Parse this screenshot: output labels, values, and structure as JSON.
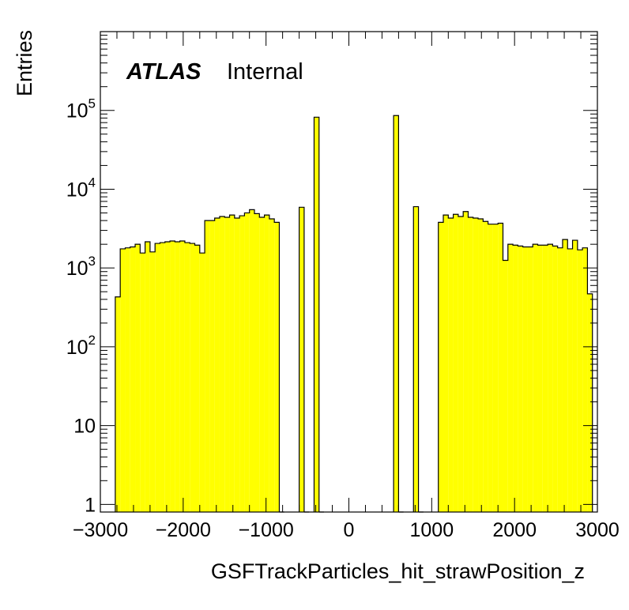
{
  "chart_data": {
    "type": "bar",
    "title": "",
    "xlabel": "GSFTrackParticles_hit_strawPosition_z",
    "ylabel": "Entries",
    "xlim": [
      -3000,
      3000
    ],
    "ylim": [
      0.8,
      1000000
    ],
    "yscale": "log",
    "x_ticks": [
      -3000,
      -2000,
      -1000,
      0,
      1000,
      2000,
      3000
    ],
    "x_tick_labels": [
      "−3000",
      "−2000",
      "−1000",
      "0",
      "1000",
      "2000",
      "3000"
    ],
    "y_ticks": [
      1,
      10,
      100,
      1000,
      10000,
      100000
    ],
    "y_tick_labels": [
      {
        "base": "1",
        "exp": ""
      },
      {
        "base": "10",
        "exp": ""
      },
      {
        "base": "10",
        "exp": "2"
      },
      {
        "base": "10",
        "exp": "3"
      },
      {
        "base": "10",
        "exp": "4"
      },
      {
        "base": "10",
        "exp": "5"
      }
    ],
    "fill_color": "#ffff00",
    "line_color": "#000000",
    "grid": false,
    "legend": "none",
    "label": {
      "experiment": "ATLAS",
      "status": "Internal"
    },
    "bin_width": 60,
    "bin_edges_start": -2820,
    "values": [
      430,
      1750,
      1800,
      1850,
      2000,
      1550,
      2150,
      1600,
      2050,
      2100,
      2150,
      2200,
      2150,
      2200,
      2100,
      2050,
      1950,
      1550,
      4000,
      4000,
      4300,
      4500,
      4400,
      4700,
      4300,
      4600,
      5000,
      5500,
      4900,
      4400,
      4700,
      4200,
      3800,
      0,
      0,
      0,
      0,
      5900,
      0,
      0,
      82000,
      0,
      0,
      0,
      0,
      0,
      0,
      0,
      0,
      0,
      0,
      0,
      0,
      0,
      0,
      0,
      86000,
      0,
      0,
      0,
      6000,
      0,
      0,
      0,
      0,
      3800,
      4700,
      4300,
      4800,
      4500,
      5200,
      4400,
      4300,
      4200,
      3900,
      3600,
      3600,
      3700,
      1250,
      2000,
      1950,
      1900,
      1850,
      1850,
      2000,
      1950,
      1950,
      2000,
      1900,
      1800,
      2300,
      1750,
      2250,
      1700,
      1800,
      470
    ]
  }
}
